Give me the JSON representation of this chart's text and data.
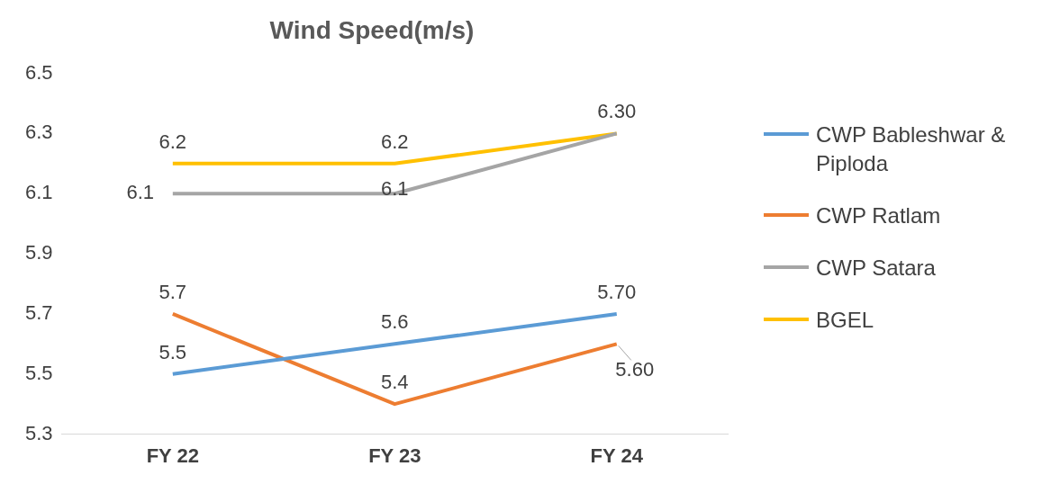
{
  "chart_data": {
    "type": "line",
    "title": "Wind Speed(m/s)",
    "categories": [
      "FY 22",
      "FY 23",
      "FY 24"
    ],
    "series": [
      {
        "name": "CWP Bableshwar & Piploda",
        "color": "#5b9bd5",
        "values": [
          5.5,
          5.6,
          5.7
        ],
        "value_labels": [
          "5.5",
          "5.6",
          "5.70"
        ]
      },
      {
        "name": "CWP Ratlam",
        "color": "#ed7d31",
        "values": [
          5.7,
          5.4,
          5.6
        ],
        "value_labels": [
          "5.7",
          "5.4",
          "5.60"
        ]
      },
      {
        "name": "CWP Satara",
        "color": "#a5a5a5",
        "values": [
          6.1,
          6.1,
          6.3
        ],
        "value_labels": [
          "6.1",
          "6.1",
          null
        ]
      },
      {
        "name": "BGEL",
        "color": "#ffc000",
        "values": [
          6.2,
          6.2,
          6.3
        ],
        "value_labels": [
          "6.2",
          "6.2",
          "6.30"
        ]
      }
    ],
    "ylim": [
      5.3,
      6.5
    ],
    "yticks": [
      5.3,
      5.5,
      5.7,
      5.9,
      6.1,
      6.3,
      6.5
    ],
    "grid": false,
    "legend": "right",
    "marker": "none",
    "line_style": "solid"
  }
}
